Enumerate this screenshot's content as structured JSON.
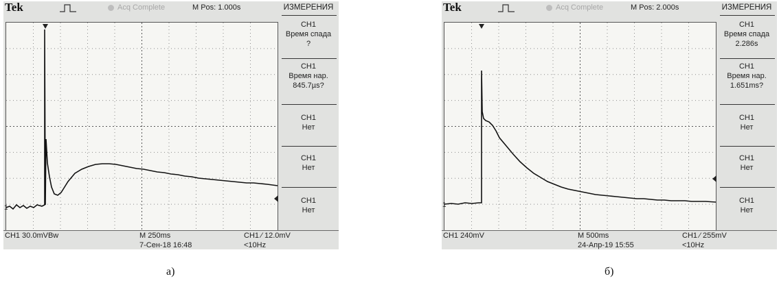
{
  "scopes": [
    {
      "brand": "Tek",
      "acq_status": "Acq Complete",
      "m_pos": "M Pos: 1.000s",
      "panel_title": "ИЗМЕРЕНИЯ",
      "measurements": [
        {
          "channel": "CH1",
          "label": "Время спада",
          "value": "?"
        },
        {
          "channel": "CH1",
          "label": "Время нар.",
          "value": "845.7µs?"
        },
        {
          "channel": "CH1",
          "label": "Нет",
          "value": ""
        },
        {
          "channel": "CH1",
          "label": "Нет",
          "value": ""
        },
        {
          "channel": "CH1",
          "label": "Нет",
          "value": ""
        }
      ],
      "ch_scale": "CH1  30.0mVBw",
      "time_scale": "M 250ms",
      "date_time": "7-Сен-18 16:48",
      "trigger": "CH1 ⁄ 12.0mV",
      "freq": "<10Hz",
      "ground_marker": "1"
    },
    {
      "brand": "Tek",
      "acq_status": "Acq Complete",
      "m_pos": "M Pos: 2.000s",
      "panel_title": "ИЗМЕРЕНИЯ",
      "measurements": [
        {
          "channel": "CH1",
          "label": "Время спада",
          "value": "2.286s"
        },
        {
          "channel": "CH1",
          "label": "Время нар.",
          "value": "1.651ms?"
        },
        {
          "channel": "CH1",
          "label": "Нет",
          "value": ""
        },
        {
          "channel": "CH1",
          "label": "Нет",
          "value": ""
        },
        {
          "channel": "CH1",
          "label": "Нет",
          "value": ""
        }
      ],
      "ch_scale": "CH1  240mV",
      "time_scale": "M 500ms",
      "date_time": "24-Апр-19 15:55",
      "trigger": "CH1 ⁄ 255mV",
      "freq": "<10Hz",
      "ground_marker": "1"
    }
  ],
  "captions": [
    "а)",
    "б)"
  ],
  "colors": {
    "screen": "#e1e2e0",
    "grid_bg": "#f6f6f3",
    "trace": "#111111",
    "grid_dots": "#8a8a8a"
  },
  "icons": {
    "trigger": "rising-pulse-icon",
    "acq": "acquisition-status-dot-icon"
  }
}
